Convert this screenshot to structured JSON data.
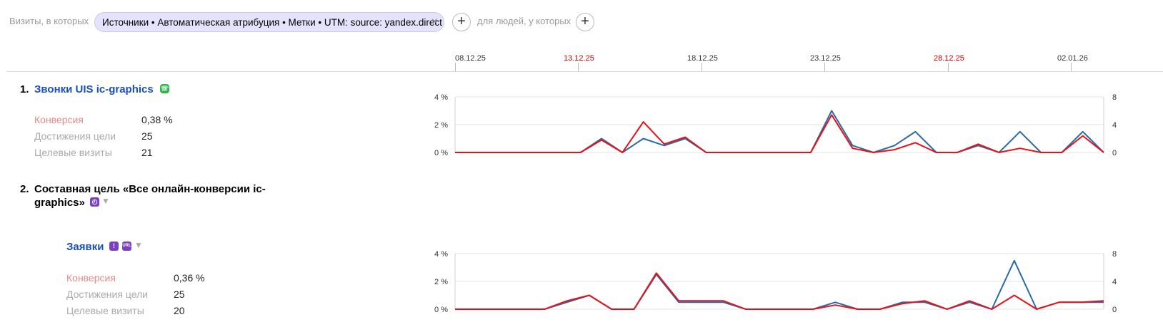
{
  "filter": {
    "visits_label": "Визиты, в которых",
    "chip_text": "Источники • Автоматическая атрибуция • Метки • UTM: source: yandex.direct",
    "people_label": "для людей, у которых"
  },
  "timeline": {
    "dates": [
      {
        "label": "08.12.25",
        "holiday": false
      },
      {
        "label": "13.12.25",
        "holiday": true
      },
      {
        "label": "18.12.25",
        "holiday": false
      },
      {
        "label": "23.12.25",
        "holiday": false
      },
      {
        "label": "28.12.25",
        "holiday": true
      },
      {
        "label": "02.01.26",
        "holiday": false
      }
    ]
  },
  "goals": [
    {
      "number": "1.",
      "title": "Звонки UIS ic-graphics",
      "metrics": [
        {
          "label": "Конверсия",
          "value": "0,38 %"
        },
        {
          "label": "Достижения цели",
          "value": "25"
        },
        {
          "label": "Целевые визиты",
          "value": "21"
        }
      ]
    },
    {
      "number": "2.",
      "title_line1": "Составная цель «Все онлайн-конверсии ic-",
      "title_line2": "graphics»"
    },
    {
      "title": "Заявки",
      "metrics": [
        {
          "label": "Конверсия",
          "value": "0,36 %"
        },
        {
          "label": "Достижения цели",
          "value": "25"
        },
        {
          "label": "Целевые визиты",
          "value": "20"
        }
      ]
    }
  ],
  "colors": {
    "conversion": "#e8111a",
    "visits": "#2a6aa5",
    "link": "#1a4fbf"
  },
  "chart_data": [
    {
      "type": "line",
      "title": "Звонки UIS ic-graphics",
      "x_start": "08.12.25",
      "x_end": "05.01.26",
      "left_axis": {
        "ticks": [
          "0 %",
          "2 %",
          "4 %"
        ],
        "range": [
          0,
          4
        ]
      },
      "right_axis": {
        "ticks": [
          "0",
          "4",
          "8"
        ],
        "range": [
          0,
          8
        ]
      },
      "series": [
        {
          "axis": "left",
          "color": "#e8111a",
          "values": [
            0,
            0,
            0,
            0,
            0,
            0,
            0,
            0.9,
            0,
            2.2,
            0.6,
            1.1,
            0,
            0,
            0,
            0,
            0,
            0,
            2.7,
            0.3,
            0,
            0.2,
            0.7,
            0,
            0,
            0.6,
            0,
            0.3,
            0,
            0,
            1.2,
            0
          ]
        },
        {
          "axis": "right",
          "color": "#2a6aa5",
          "values": [
            0,
            0,
            0,
            0,
            0,
            0,
            0,
            2,
            0,
            2,
            1,
            2,
            0,
            0,
            0,
            0,
            0,
            0,
            6,
            1,
            0,
            1,
            3,
            0,
            0,
            1,
            0,
            3,
            0,
            0,
            3,
            0
          ]
        }
      ]
    },
    {
      "type": "line",
      "title": "Заявки",
      "x_start": "08.12.25",
      "x_end": "05.01.26",
      "left_axis": {
        "ticks": [
          "0 %",
          "2 %",
          "4 %"
        ],
        "range": [
          0,
          4
        ]
      },
      "right_axis": {
        "ticks": [
          "0",
          "4",
          "8"
        ],
        "range": [
          0,
          8
        ]
      },
      "series": [
        {
          "axis": "left",
          "color": "#e8111a",
          "values": [
            0,
            0,
            0,
            0,
            0,
            0.6,
            1,
            0,
            0,
            2.6,
            0.6,
            0.6,
            0.6,
            0,
            0,
            0,
            0,
            0.3,
            0,
            0,
            0.4,
            0.6,
            0,
            0.6,
            0,
            1,
            0,
            0.5,
            0.5,
            0.6
          ]
        },
        {
          "axis": "right",
          "color": "#2a6aa5",
          "values": [
            0,
            0,
            0,
            0,
            0,
            1,
            2,
            0,
            0,
            5,
            1,
            1,
            1,
            0,
            0,
            0,
            0,
            1,
            0,
            0,
            1,
            1,
            0,
            1,
            0,
            7,
            0,
            1,
            1,
            1
          ]
        }
      ]
    }
  ]
}
